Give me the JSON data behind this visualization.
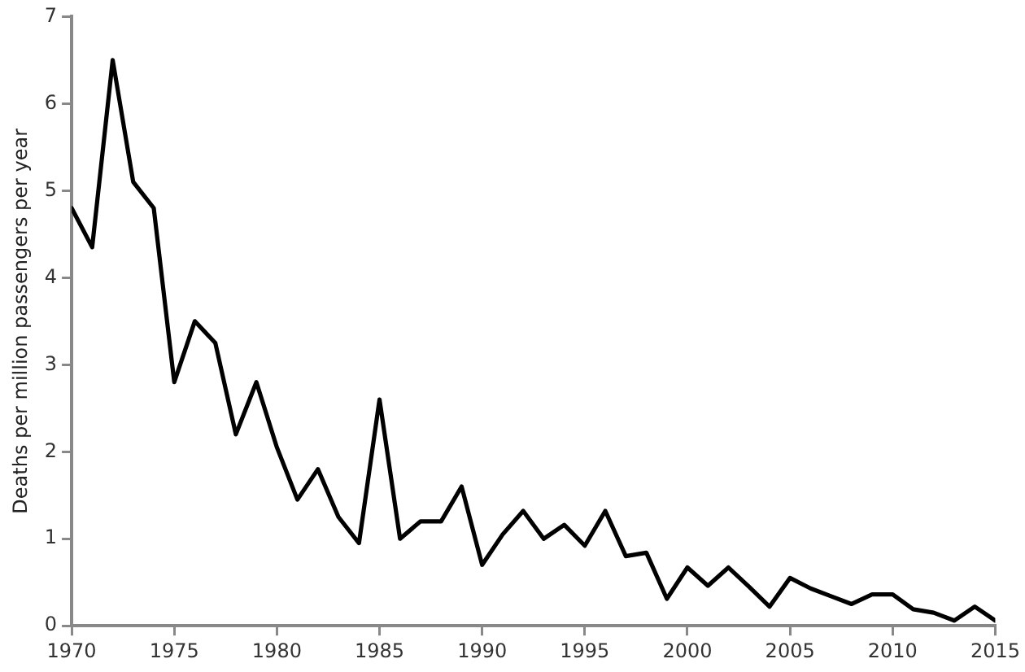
{
  "chart_data": {
    "type": "line",
    "ylabel": "Deaths per million passengers per year",
    "x": [
      1970,
      1971,
      1972,
      1973,
      1974,
      1975,
      1976,
      1977,
      1978,
      1979,
      1980,
      1981,
      1982,
      1983,
      1984,
      1985,
      1986,
      1987,
      1988,
      1989,
      1990,
      1991,
      1992,
      1993,
      1994,
      1995,
      1996,
      1997,
      1998,
      1999,
      2000,
      2001,
      2002,
      2003,
      2004,
      2005,
      2006,
      2007,
      2008,
      2009,
      2010,
      2011,
      2012,
      2013,
      2014,
      2015
    ],
    "series": [
      {
        "color": "#000000",
        "values": [
          4.8,
          4.35,
          6.5,
          5.1,
          4.8,
          2.8,
          3.5,
          3.25,
          2.2,
          2.8,
          2.05,
          1.45,
          1.8,
          1.25,
          0.95,
          2.6,
          1.0,
          1.2,
          1.2,
          1.6,
          0.7,
          1.05,
          1.32,
          1.0,
          1.16,
          0.92,
          1.32,
          0.8,
          0.84,
          0.31,
          0.67,
          0.46,
          0.67,
          0.45,
          0.22,
          0.55,
          0.43,
          0.34,
          0.25,
          0.36,
          0.36,
          0.19,
          0.15,
          0.06,
          0.22,
          0.06
        ]
      }
    ],
    "xlim": [
      1970,
      2015
    ],
    "xticks": [
      1970,
      1975,
      1980,
      1985,
      1990,
      1995,
      2000,
      2005,
      2010,
      2015
    ],
    "ylim": [
      0,
      7
    ],
    "yticks": [
      0,
      1,
      2,
      3,
      4,
      5,
      6,
      7
    ],
    "grid": false,
    "legend": false,
    "marker": "none",
    "line_style": "solid"
  }
}
